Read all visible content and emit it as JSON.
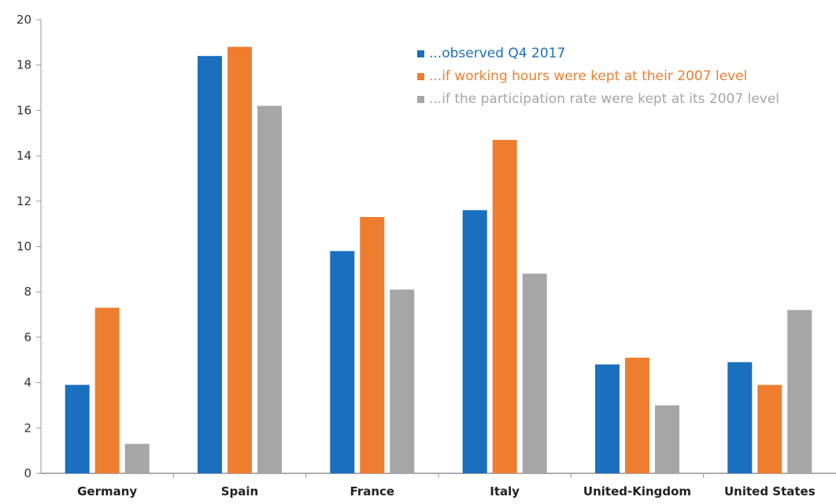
{
  "chart_data": {
    "type": "bar",
    "title": "",
    "xlabel": "",
    "ylabel": "",
    "ylim": [
      0,
      20
    ],
    "yticks": [
      0,
      2,
      4,
      6,
      8,
      10,
      12,
      14,
      16,
      18,
      20
    ],
    "grid": false,
    "legend_position": "top-right",
    "categories": [
      "Germany",
      "Spain",
      "France",
      "Italy",
      "United-Kingdom",
      "United States"
    ],
    "series": [
      {
        "name": "...observed Q4 2017",
        "color": "#1a6fbe",
        "values": [
          3.9,
          18.4,
          9.8,
          11.6,
          4.8,
          4.9
        ]
      },
      {
        "name": "...if working hours were kept at their 2007 level",
        "color": "#ef7d30",
        "values": [
          7.3,
          18.8,
          11.3,
          14.7,
          5.1,
          3.9
        ]
      },
      {
        "name": "...if the participation rate were kept at its 2007 level",
        "color": "#a6a6a6",
        "values": [
          1.3,
          16.2,
          8.1,
          8.8,
          3.0,
          7.2
        ]
      }
    ]
  }
}
